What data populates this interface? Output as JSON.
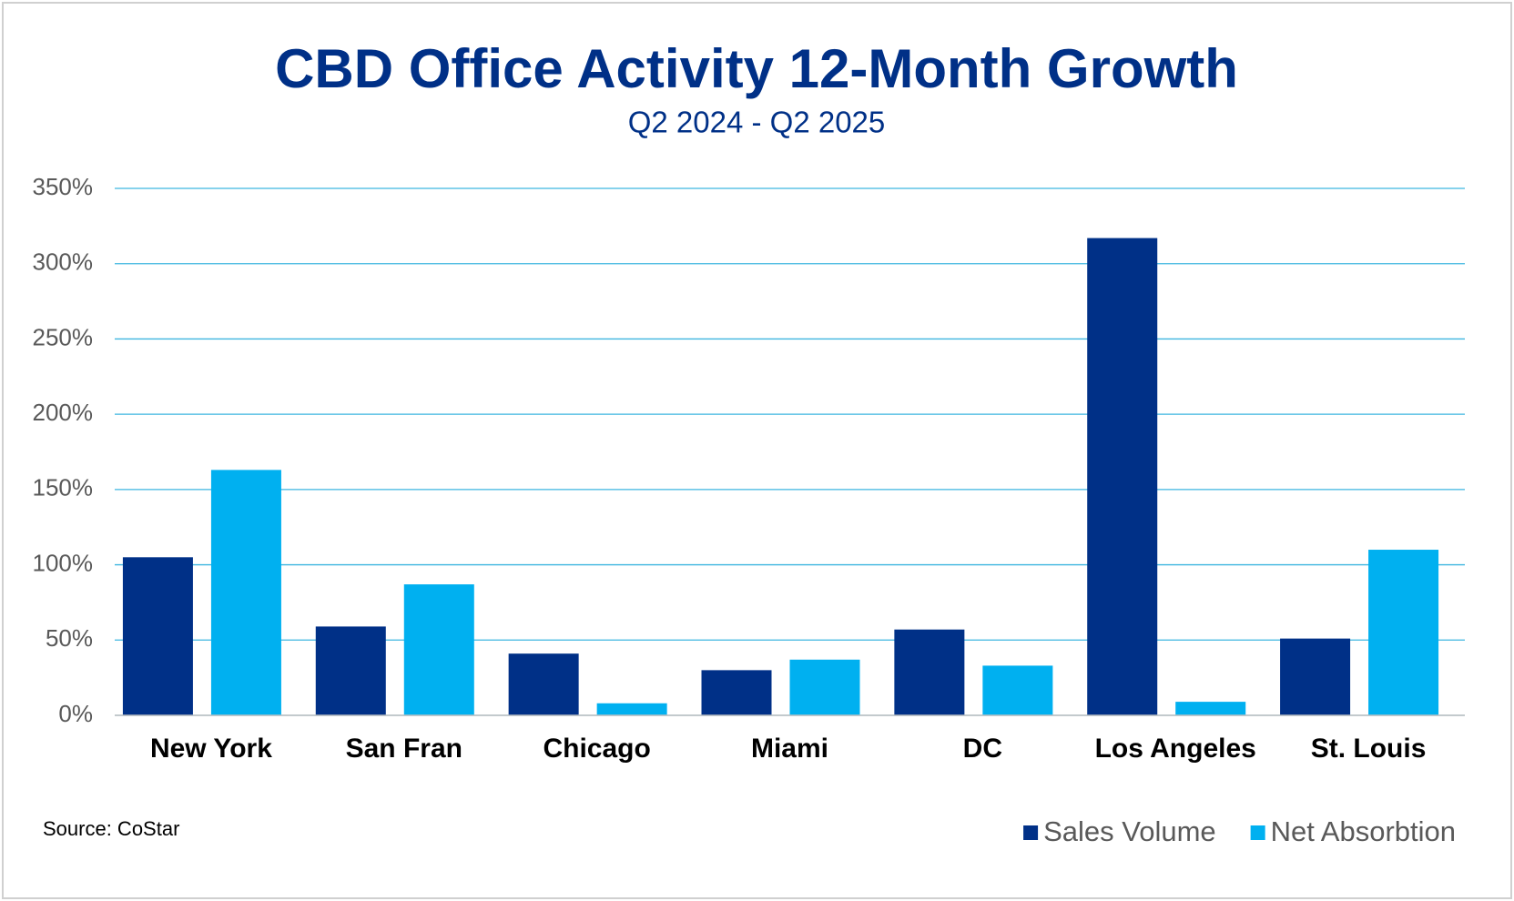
{
  "chart_data": {
    "type": "bar",
    "title": "CBD Office Activity 12-Month Growth",
    "subtitle": "Q2 2024 - Q2 2025",
    "source": "Source: CoStar",
    "categories": [
      "New York",
      "San Fran",
      "Chicago",
      "Miami",
      "DC",
      "Los Angeles",
      "St. Louis"
    ],
    "series": [
      {
        "name": "Sales Volume",
        "color": "#003087",
        "values": [
          105,
          59,
          41,
          30,
          57,
          317,
          51
        ]
      },
      {
        "name": "Net Absorbtion",
        "color": "#00b0f0",
        "values": [
          163,
          87,
          8,
          37,
          33,
          9,
          110
        ]
      }
    ],
    "ylim": [
      0,
      350
    ],
    "yticks": [
      {
        "value": 0,
        "label": "0%"
      },
      {
        "value": 50,
        "label": "50%"
      },
      {
        "value": 100,
        "label": "100%"
      },
      {
        "value": 150,
        "label": "150%"
      },
      {
        "value": 200,
        "label": "200%"
      },
      {
        "value": 250,
        "label": "250%"
      },
      {
        "value": 300,
        "label": "300%"
      },
      {
        "value": 350,
        "label": "350%"
      }
    ],
    "grid": true,
    "legend": "bottom-right"
  }
}
